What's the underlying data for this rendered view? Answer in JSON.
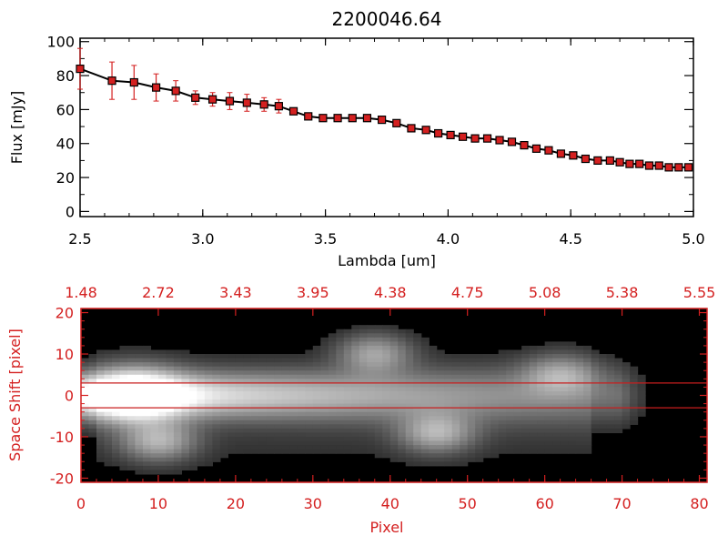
{
  "chart_data": [
    {
      "type": "line",
      "title": "2200046.64",
      "xlabel": "Lambda [um]",
      "ylabel": "Flux [mJy]",
      "xlim": [
        2.5,
        5.0
      ],
      "ylim": [
        -3,
        102
      ],
      "xticks": [
        "2.5",
        "3.0",
        "3.5",
        "4.0",
        "4.5",
        "5.0"
      ],
      "yticks": [
        "0",
        "20",
        "40",
        "60",
        "80",
        "100"
      ],
      "series": [
        {
          "name": "Flux",
          "color": "#000000",
          "marker_color": "#d42020",
          "errorbar_color": "#d42020",
          "x": [
            2.5,
            2.63,
            2.72,
            2.81,
            2.89,
            2.97,
            3.04,
            3.11,
            3.18,
            3.25,
            3.31,
            3.37,
            3.43,
            3.49,
            3.55,
            3.61,
            3.67,
            3.73,
            3.79,
            3.85,
            3.91,
            3.96,
            4.01,
            4.06,
            4.11,
            4.16,
            4.21,
            4.26,
            4.31,
            4.36,
            4.41,
            4.46,
            4.51,
            4.56,
            4.61,
            4.66,
            4.7,
            4.74,
            4.78,
            4.82,
            4.86,
            4.9,
            4.94,
            4.98
          ],
          "y": [
            84,
            77,
            76,
            73,
            71,
            67,
            66,
            65,
            64,
            63,
            62,
            59,
            56,
            55,
            55,
            55,
            55,
            54,
            52,
            49,
            48,
            46,
            45,
            44,
            43,
            43,
            42,
            41,
            39,
            37,
            36,
            34,
            33,
            31,
            30,
            30,
            29,
            28,
            28,
            27,
            27,
            26,
            26,
            26
          ],
          "err": [
            12,
            11,
            10,
            8,
            6,
            4,
            4,
            5,
            5,
            4,
            4,
            2,
            1,
            1,
            1,
            1,
            1,
            1,
            1,
            1,
            1,
            1,
            1,
            1,
            1,
            1,
            1,
            1,
            1,
            1,
            1,
            1,
            1,
            1,
            1,
            1,
            1,
            1,
            1,
            1,
            1,
            1,
            1,
            1
          ]
        }
      ]
    },
    {
      "type": "heatmap",
      "xlabel": "Pixel",
      "ylabel": "Space Shift [pixel]",
      "xlim": [
        0,
        81
      ],
      "ylim": [
        -21,
        21
      ],
      "xticks": [
        "0",
        "10",
        "20",
        "30",
        "40",
        "50",
        "60",
        "70",
        "80"
      ],
      "yticks": [
        "-20",
        "-10",
        "0",
        "10",
        "20"
      ],
      "top_axis_label_values": [
        "1.48",
        "2.72",
        "3.43",
        "3.95",
        "4.38",
        "4.75",
        "5.08",
        "5.38",
        "5.55"
      ],
      "extraction_lines": [
        3,
        -3
      ],
      "axis_color": "#d42020",
      "background": "#000000",
      "sources": [
        {
          "name": "main",
          "x": 7,
          "y": 0,
          "peak": 1.0
        },
        {
          "name": "upper",
          "x": 38,
          "y": 10,
          "peak": 0.45
        },
        {
          "name": "lower-left",
          "x": 10,
          "y": -11,
          "peak": 0.5
        },
        {
          "name": "lower-mid",
          "x": 46,
          "y": -9,
          "peak": 0.5
        },
        {
          "name": "right",
          "x": 62,
          "y": 5,
          "peak": 0.4
        }
      ]
    }
  ]
}
